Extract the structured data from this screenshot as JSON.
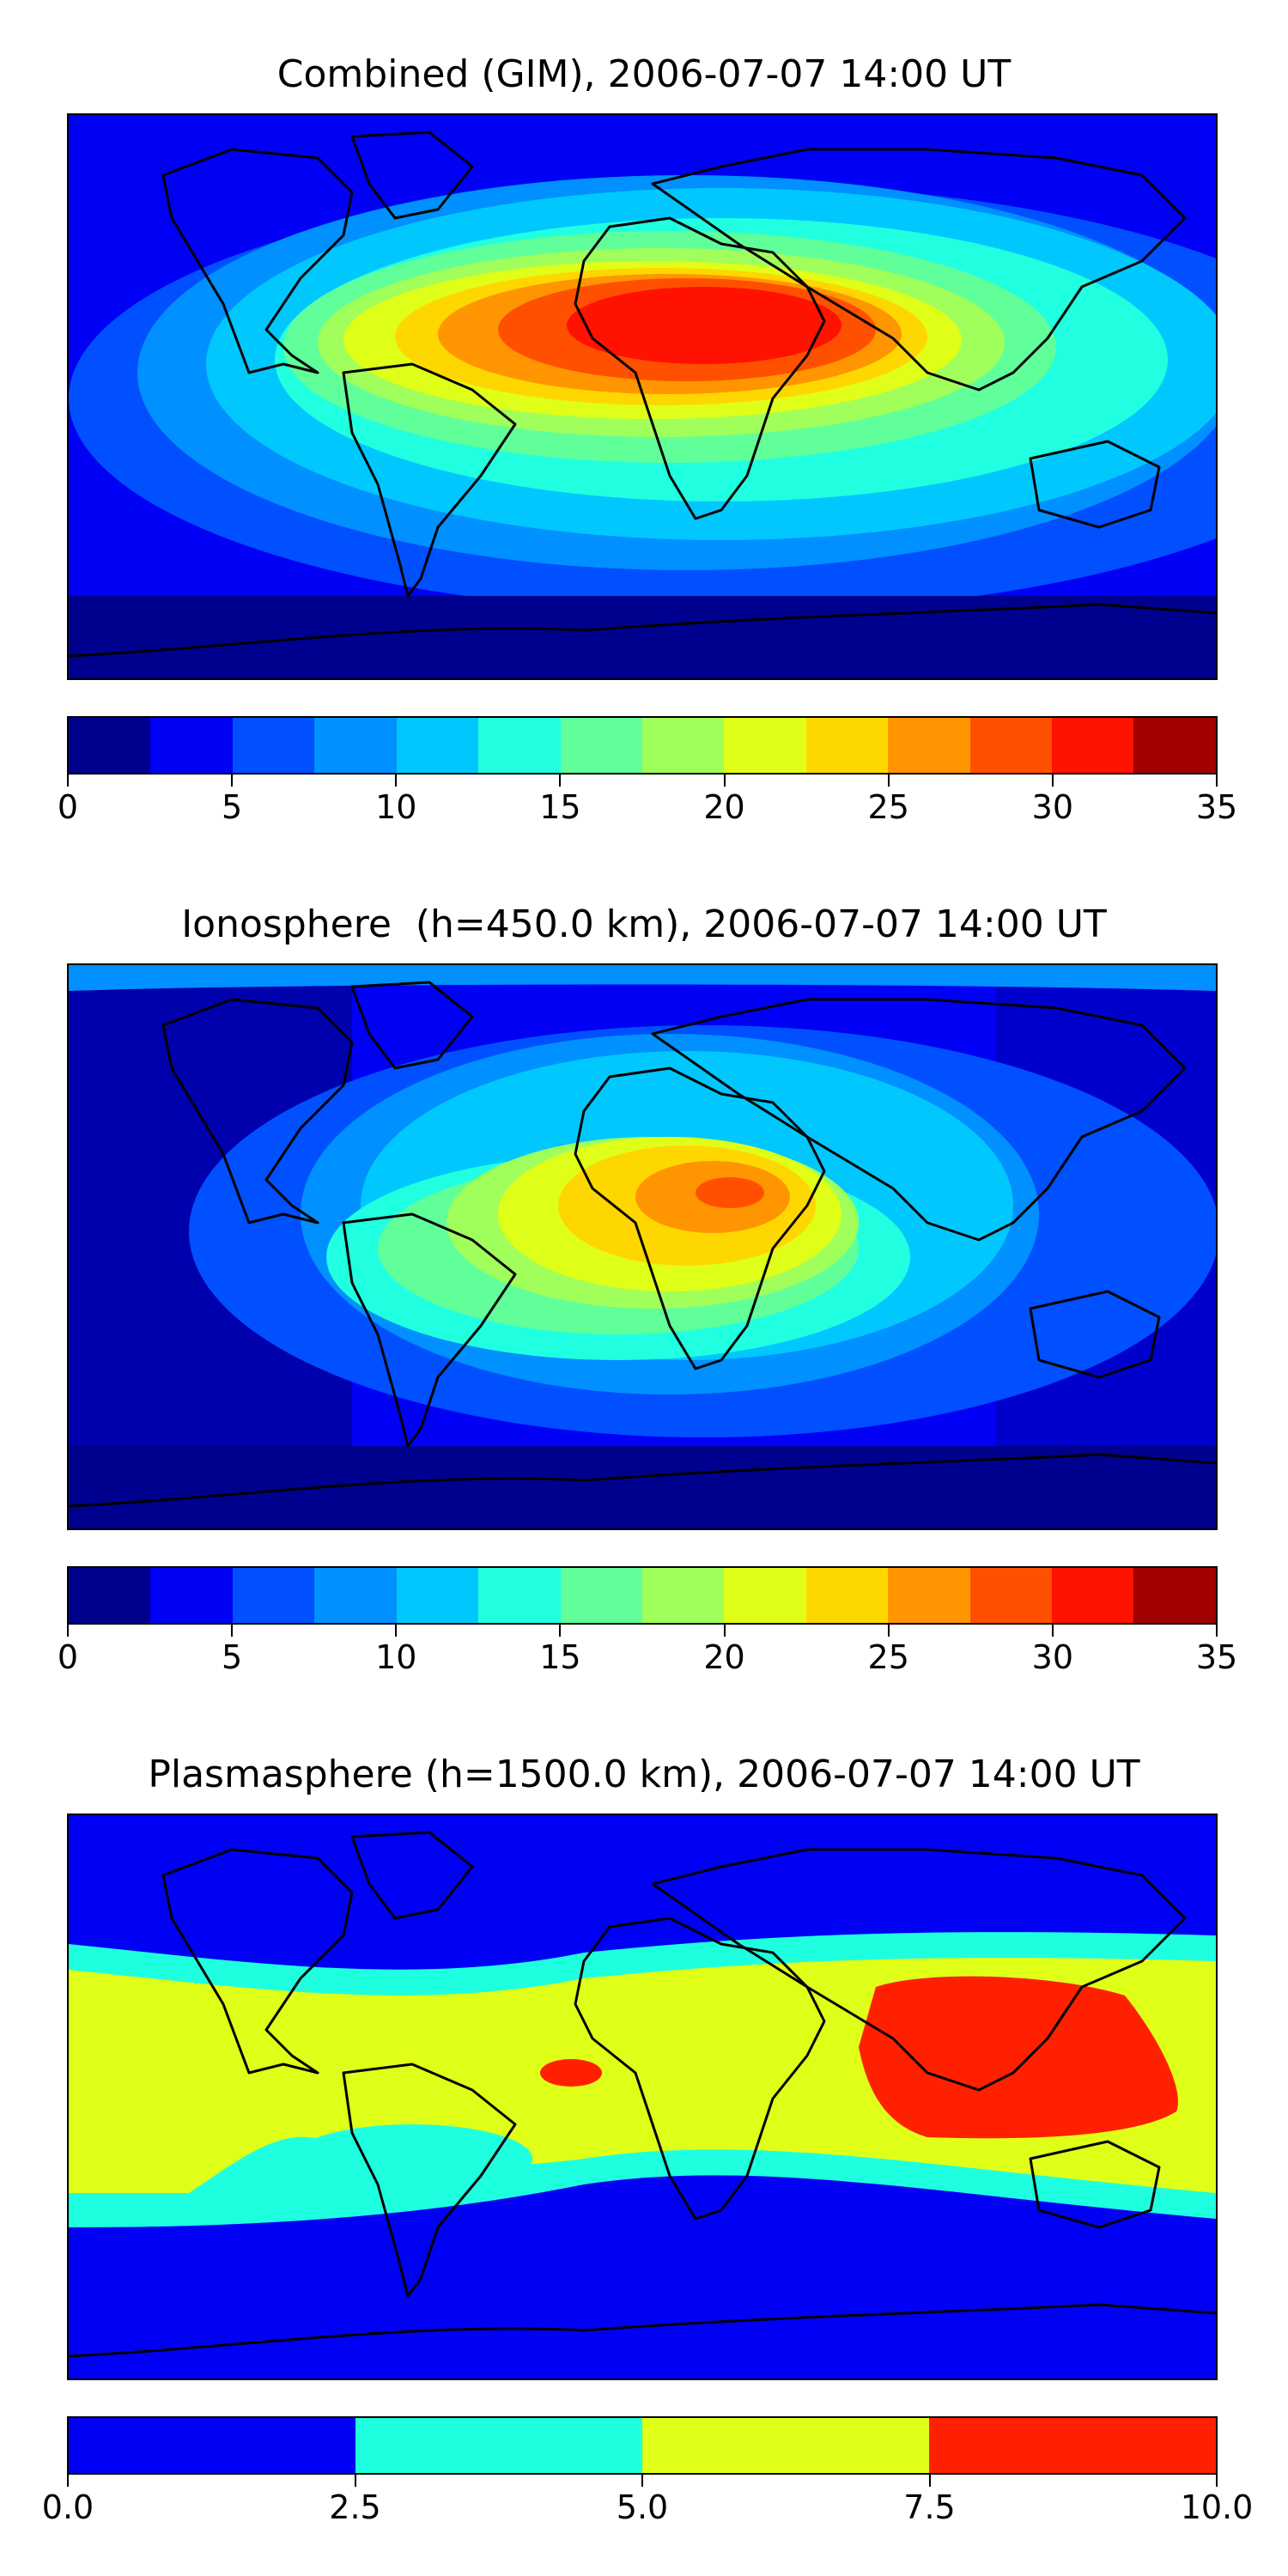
{
  "panels": [
    {
      "title": "Combined (GIM), 2006-07-07 14:00 UT",
      "colorbar": {
        "colors": [
          "#00008f",
          "#0000f5",
          "#0050ff",
          "#0090ff",
          "#00c8ff",
          "#20ffe0",
          "#60ff9a",
          "#a0ff5a",
          "#e0ff18",
          "#ffd700",
          "#ff9500",
          "#ff5000",
          "#ff1200",
          "#a00000"
        ],
        "ticks": [
          "0",
          "5",
          "10",
          "15",
          "20",
          "25",
          "30",
          "35"
        ]
      }
    },
    {
      "title": "Ionosphere  (h=450.0 km), 2006-07-07 14:00 UT",
      "colorbar": {
        "colors": [
          "#00008f",
          "#0000f5",
          "#0050ff",
          "#0090ff",
          "#00c8ff",
          "#20ffe0",
          "#60ff9a",
          "#a0ff5a",
          "#e0ff18",
          "#ffd700",
          "#ff9500",
          "#ff5000",
          "#ff1200",
          "#a00000"
        ],
        "ticks": [
          "0",
          "5",
          "10",
          "15",
          "20",
          "25",
          "30",
          "35"
        ]
      }
    },
    {
      "title": "Plasmasphere (h=1500.0 km), 2006-07-07 14:00 UT",
      "colorbar": {
        "colors": [
          "#0000f5",
          "#1effe0",
          "#e0ff18",
          "#ff2000"
        ],
        "ticks": [
          "0.0",
          "2.5",
          "5.0",
          "7.5",
          "10.0"
        ]
      }
    }
  ]
}
